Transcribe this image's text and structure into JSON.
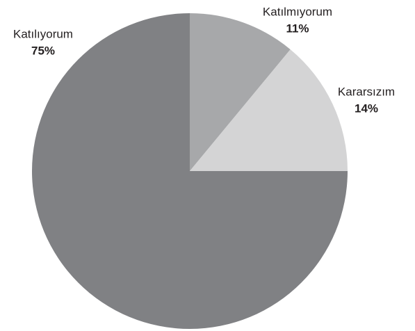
{
  "chart_data": {
    "type": "pie",
    "categories": [
      "Katılmıyorum",
      "Kararsızım",
      "Katılıyorum"
    ],
    "values": [
      11,
      14,
      75
    ],
    "value_labels": [
      "11%",
      "14%",
      "75%"
    ],
    "colors": [
      "#a7a8aa",
      "#d4d4d5",
      "#808184"
    ]
  }
}
